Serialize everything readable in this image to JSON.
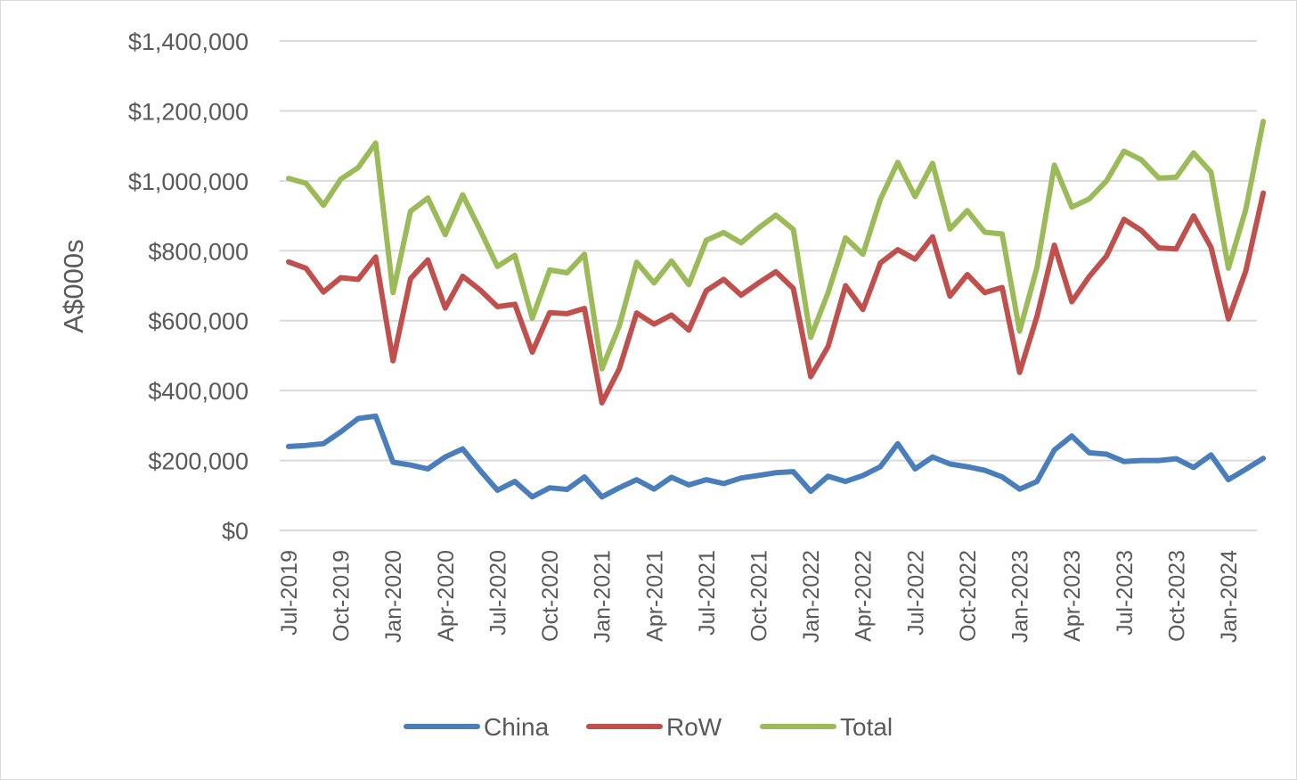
{
  "chart_data": {
    "type": "line",
    "title": "",
    "xlabel": "",
    "ylabel": "A$000s",
    "ylim": [
      0,
      1400000
    ],
    "yticks": [
      {
        "value": 0,
        "label": "$0"
      },
      {
        "value": 200000,
        "label": "$200,000"
      },
      {
        "value": 400000,
        "label": "$400,000"
      },
      {
        "value": 600000,
        "label": "$600,000"
      },
      {
        "value": 800000,
        "label": "$800,000"
      },
      {
        "value": 1000000,
        "label": "$1,000,000"
      },
      {
        "value": 1200000,
        "label": "$1,200,000"
      },
      {
        "value": 1400000,
        "label": "$1,400,000"
      }
    ],
    "grid": true,
    "legend_position": "bottom",
    "x": [
      "Jul-2019",
      "Aug-2019",
      "Sep-2019",
      "Oct-2019",
      "Nov-2019",
      "Dec-2019",
      "Jan-2020",
      "Feb-2020",
      "Mar-2020",
      "Apr-2020",
      "May-2020",
      "Jun-2020",
      "Jul-2020",
      "Aug-2020",
      "Sep-2020",
      "Oct-2020",
      "Nov-2020",
      "Dec-2020",
      "Jan-2021",
      "Feb-2021",
      "Mar-2021",
      "Apr-2021",
      "May-2021",
      "Jun-2021",
      "Jul-2021",
      "Aug-2021",
      "Sep-2021",
      "Oct-2021",
      "Nov-2021",
      "Dec-2021",
      "Jan-2022",
      "Feb-2022",
      "Mar-2022",
      "Apr-2022",
      "May-2022",
      "Jun-2022",
      "Jul-2022",
      "Aug-2022",
      "Sep-2022",
      "Oct-2022",
      "Nov-2022",
      "Dec-2022",
      "Jan-2023",
      "Feb-2023",
      "Mar-2023",
      "Apr-2023",
      "May-2023",
      "Jun-2023",
      "Jul-2023",
      "Aug-2023",
      "Sep-2023",
      "Oct-2023",
      "Nov-2023",
      "Dec-2023",
      "Jan-2024",
      "Feb-2024",
      "Mar-2024"
    ],
    "x_tick_labels": [
      "Jul-2019",
      "Oct-2019",
      "Jan-2020",
      "Apr-2020",
      "Jul-2020",
      "Oct-2020",
      "Jan-2021",
      "Apr-2021",
      "Jul-2021",
      "Oct-2021",
      "Jan-2022",
      "Apr-2022",
      "Jul-2022",
      "Oct-2022",
      "Jan-2023",
      "Apr-2023",
      "Jul-2023",
      "Oct-2023",
      "Jan-2024"
    ],
    "series": [
      {
        "name": "China",
        "color": "#4a7ebb",
        "values": [
          240000,
          243000,
          248000,
          282000,
          320000,
          327000,
          195000,
          187000,
          176000,
          210000,
          233000,
          172000,
          115000,
          140000,
          96000,
          122000,
          117000,
          153000,
          96000,
          122000,
          145000,
          118000,
          152000,
          130000,
          145000,
          134000,
          150000,
          157000,
          165000,
          168000,
          112000,
          155000,
          140000,
          157000,
          182000,
          248000,
          176000,
          210000,
          190000,
          182000,
          172000,
          153000,
          118000,
          140000,
          230000,
          270000,
          222000,
          218000,
          197000,
          200000,
          200000,
          205000,
          180000,
          216000,
          145000,
          175000,
          206000
        ]
      },
      {
        "name": "RoW",
        "color": "#c0504d",
        "values": [
          768000,
          750000,
          682000,
          723000,
          718000,
          782000,
          485000,
          720000,
          774000,
          636000,
          727000,
          688000,
          640000,
          647000,
          510000,
          623000,
          620000,
          635000,
          365000,
          462000,
          622000,
          590000,
          616000,
          573000,
          686000,
          718000,
          673000,
          708000,
          740000,
          692000,
          440000,
          526000,
          700000,
          632000,
          765000,
          803000,
          776000,
          840000,
          670000,
          732000,
          680000,
          695000,
          452000,
          612000,
          816000,
          654000,
          726000,
          785000,
          890000,
          858000,
          808000,
          805000,
          900000,
          810000,
          605000,
          742000,
          965000
        ]
      },
      {
        "name": "Total",
        "color": "#9bbb59",
        "values": [
          1007000,
          993000,
          930000,
          1005000,
          1038000,
          1108000,
          680000,
          913000,
          951000,
          846000,
          960000,
          860000,
          755000,
          787000,
          607000,
          745000,
          737000,
          790000,
          462000,
          585000,
          767000,
          708000,
          771000,
          703000,
          830000,
          852000,
          823000,
          865000,
          902000,
          861000,
          552000,
          680000,
          837000,
          790000,
          947000,
          1053000,
          955000,
          1050000,
          862000,
          915000,
          853000,
          848000,
          570000,
          752000,
          1045000,
          925000,
          948000,
          1000000,
          1085000,
          1060000,
          1008000,
          1010000,
          1080000,
          1025000,
          750000,
          918000,
          1170000
        ]
      }
    ]
  }
}
